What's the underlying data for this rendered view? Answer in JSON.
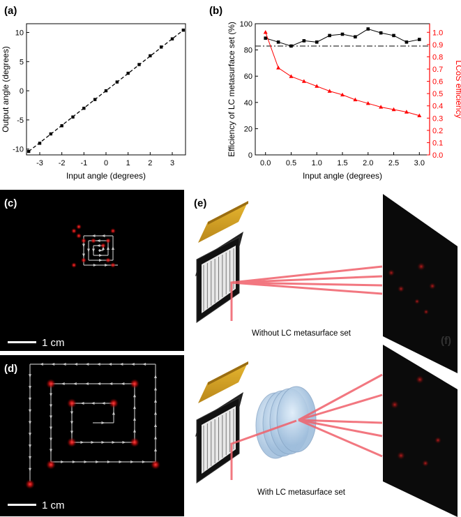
{
  "panels": {
    "a": "(a)",
    "b": "(b)",
    "c": "(c)",
    "d": "(d)",
    "e": "(e)",
    "f": "(f)"
  },
  "chart_data": [
    {
      "id": "a",
      "type": "scatter",
      "xlabel": "Input angle (degrees)",
      "ylabel": "Output angle (degrees)",
      "xlim": [
        -3.6,
        3.6
      ],
      "ylim": [
        -11,
        11.5
      ],
      "xticks": [
        "-3",
        "-2",
        "-1",
        "0",
        "1",
        "2",
        "3"
      ],
      "yticks": [
        "-10",
        "-5",
        "0",
        "5",
        "10"
      ],
      "x": [
        -3.5,
        -3.0,
        -2.5,
        -2.0,
        -1.5,
        -1.0,
        -0.5,
        0.0,
        0.5,
        1.0,
        1.5,
        2.0,
        2.5,
        3.0,
        3.5
      ],
      "y": [
        -10.4,
        -9.0,
        -7.4,
        -6.0,
        -4.5,
        -3.0,
        -1.5,
        0.0,
        1.5,
        3.0,
        4.5,
        6.0,
        7.5,
        8.9,
        10.4
      ],
      "fit_line": "dashed",
      "grid": false
    },
    {
      "id": "b",
      "type": "line",
      "xlabel": "Input angle (degrees)",
      "ylabel": "Efficiency of LC metasurface set (%)",
      "ylabel_right": "LCoS efficiency",
      "xlim": [
        -0.2,
        3.2
      ],
      "ylim": [
        0,
        100
      ],
      "ylim_right": [
        0,
        1.07
      ],
      "xticks": [
        "0.0",
        "0.5",
        "1.0",
        "1.5",
        "2.0",
        "2.5",
        "3.0"
      ],
      "yticks": [
        "0",
        "20",
        "40",
        "60",
        "80",
        "100"
      ],
      "yticks_right": [
        "0.0",
        "0.1",
        "0.2",
        "0.3",
        "0.4",
        "0.5",
        "0.6",
        "0.7",
        "0.8",
        "0.9",
        "1.0"
      ],
      "x": [
        0.0,
        0.25,
        0.5,
        0.75,
        1.0,
        1.25,
        1.5,
        1.75,
        2.0,
        2.25,
        2.5,
        2.75,
        3.0
      ],
      "series": [
        {
          "axis": "left",
          "color": "#000000",
          "marker": "square",
          "values": [
            89,
            86,
            83,
            87,
            86,
            91,
            92,
            90,
            96,
            93,
            91,
            86,
            88
          ]
        },
        {
          "axis": "right",
          "color": "#ff0000",
          "marker": "triangle",
          "values": [
            1.0,
            0.71,
            0.64,
            0.6,
            0.56,
            0.52,
            0.49,
            0.45,
            0.42,
            0.39,
            0.37,
            0.35,
            0.32
          ]
        }
      ],
      "reference_line": {
        "value": 83,
        "style": "dash-dot",
        "color": "#000000"
      },
      "grid": false
    }
  ],
  "scalebars": {
    "c": "1 cm",
    "d": "1 cm"
  },
  "captions": {
    "without": "Without LC metasurface set",
    "with": "With LC metasurface set"
  },
  "colors": {
    "beam": "#f0606a",
    "spot": "#e01818",
    "gold": "#d4a02a",
    "path": "#b8b8b8"
  }
}
